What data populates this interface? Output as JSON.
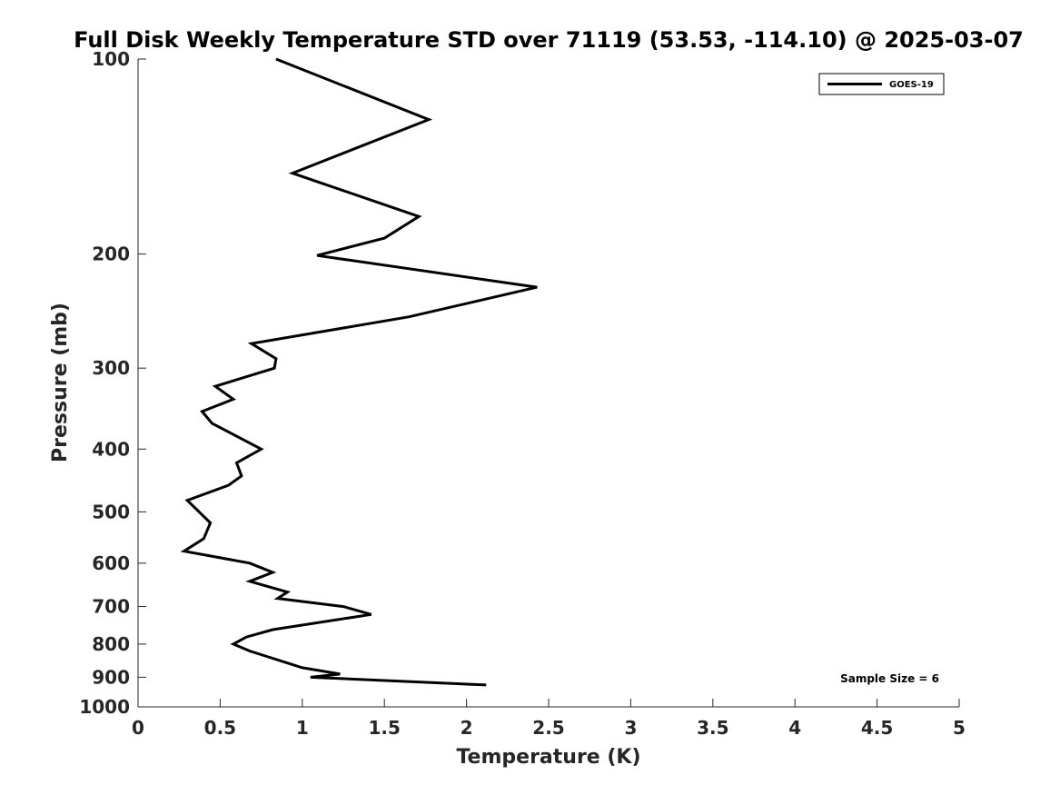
{
  "chart_data": {
    "type": "line",
    "title": "Full Disk Weekly Temperature STD over 71119 (53.53, -114.10) @ 2025-03-07",
    "xlabel": "Temperature (K)",
    "ylabel": "Pressure (mb)",
    "xlim": [
      0,
      5
    ],
    "ylim": [
      100,
      1000
    ],
    "y_scale": "log",
    "y_reversed": true,
    "grid": false,
    "legend_position": "top-right",
    "x_ticks": [
      0,
      0.5,
      1,
      1.5,
      2,
      2.5,
      3,
      3.5,
      4,
      4.5,
      5
    ],
    "x_tick_labels": [
      "0",
      "0.5",
      "1",
      "1.5",
      "2",
      "2.5",
      "3",
      "3.5",
      "4",
      "4.5",
      "5"
    ],
    "y_ticks": [
      100,
      200,
      300,
      400,
      500,
      600,
      700,
      800,
      900,
      1000
    ],
    "y_tick_labels": [
      "100",
      "200",
      "300",
      "400",
      "500",
      "600",
      "700",
      "800",
      "900",
      "1000"
    ],
    "series": [
      {
        "name": "GOES-19",
        "color": "#000000",
        "points": [
          {
            "x": 0.84,
            "y": 100
          },
          {
            "x": 1.77,
            "y": 124
          },
          {
            "x": 0.94,
            "y": 150
          },
          {
            "x": 1.71,
            "y": 175
          },
          {
            "x": 1.5,
            "y": 189
          },
          {
            "x": 1.09,
            "y": 201
          },
          {
            "x": 2.43,
            "y": 225
          },
          {
            "x": 1.65,
            "y": 250
          },
          {
            "x": 0.69,
            "y": 275
          },
          {
            "x": 0.84,
            "y": 290
          },
          {
            "x": 0.83,
            "y": 300
          },
          {
            "x": 0.47,
            "y": 320
          },
          {
            "x": 0.58,
            "y": 335
          },
          {
            "x": 0.39,
            "y": 350
          },
          {
            "x": 0.45,
            "y": 365
          },
          {
            "x": 0.75,
            "y": 400
          },
          {
            "x": 0.6,
            "y": 420
          },
          {
            "x": 0.63,
            "y": 440
          },
          {
            "x": 0.55,
            "y": 455
          },
          {
            "x": 0.3,
            "y": 480
          },
          {
            "x": 0.44,
            "y": 520
          },
          {
            "x": 0.4,
            "y": 550
          },
          {
            "x": 0.28,
            "y": 575
          },
          {
            "x": 0.68,
            "y": 600
          },
          {
            "x": 0.82,
            "y": 620
          },
          {
            "x": 0.68,
            "y": 640
          },
          {
            "x": 0.91,
            "y": 665
          },
          {
            "x": 0.85,
            "y": 680
          },
          {
            "x": 1.25,
            "y": 700
          },
          {
            "x": 1.42,
            "y": 720
          },
          {
            "x": 0.82,
            "y": 760
          },
          {
            "x": 0.66,
            "y": 780
          },
          {
            "x": 0.58,
            "y": 800
          },
          {
            "x": 0.68,
            "y": 820
          },
          {
            "x": 1.0,
            "y": 870
          },
          {
            "x": 1.23,
            "y": 890
          },
          {
            "x": 1.05,
            "y": 900
          },
          {
            "x": 2.12,
            "y": 925
          }
        ]
      }
    ],
    "annotations": [
      {
        "text": "Sample Size = 6",
        "position": "bottom-right"
      }
    ]
  }
}
